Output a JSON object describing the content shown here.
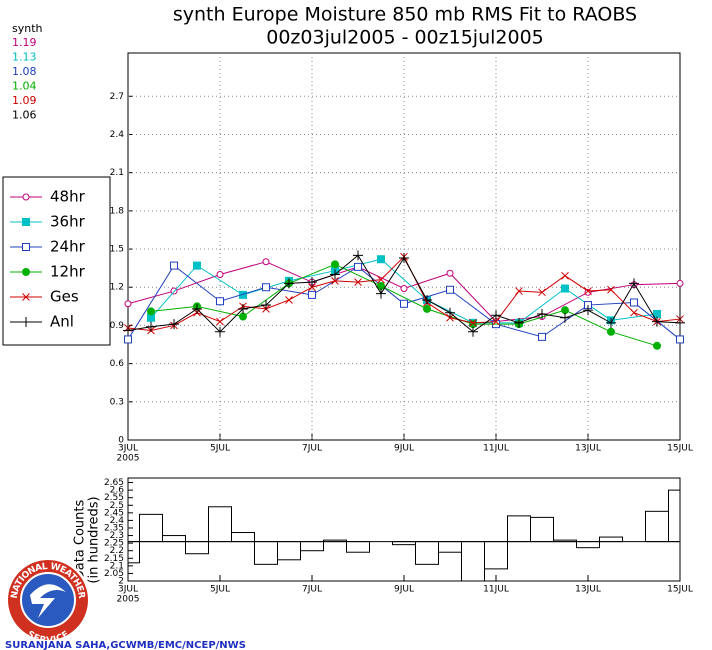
{
  "chart_data": [
    {
      "type": "line",
      "title": "synth Europe Moisture 850 mb RMS Fit to RAOBS",
      "subtitle": "00z03jul2005 - 00z15jul2005",
      "stats_label": "synth",
      "year": "2005",
      "xlim": [
        3,
        15
      ],
      "xticks": [
        {
          "value": 3,
          "label": "3JUL"
        },
        {
          "value": 5,
          "label": "5JUL"
        },
        {
          "value": 7,
          "label": "7JUL"
        },
        {
          "value": 9,
          "label": "9JUL"
        },
        {
          "value": 11,
          "label": "11JUL"
        },
        {
          "value": 13,
          "label": "13JUL"
        },
        {
          "value": 15,
          "label": "15JUL"
        }
      ],
      "ylim": [
        0,
        3.04
      ],
      "yticks": [
        0,
        0.3,
        0.6,
        0.9,
        1.2,
        1.5,
        1.8,
        2.1,
        2.4,
        2.7
      ],
      "grid": true,
      "series": [
        {
          "name": "48hr",
          "color": "#c0007a",
          "marker": "circle-open",
          "stat": 1.19,
          "x": [
            3,
            4,
            5,
            6,
            7,
            8,
            9,
            10,
            11,
            12,
            13,
            14,
            15
          ],
          "values": [
            1.07,
            1.17,
            1.3,
            1.4,
            1.24,
            1.36,
            1.19,
            1.31,
            0.93,
            0.97,
            1.16,
            1.22,
            1.23
          ]
        },
        {
          "name": "36hr",
          "color": "#00c0c8",
          "marker": "square-filled",
          "stat": 1.13,
          "x": [
            3.5,
            4.5,
            5.5,
            6.5,
            7.5,
            8.5,
            9.5,
            10.5,
            11.5,
            12.5,
            13.5,
            14.5
          ],
          "values": [
            0.96,
            1.37,
            1.14,
            1.25,
            1.33,
            1.42,
            1.1,
            0.92,
            0.92,
            1.19,
            0.94,
            0.99
          ]
        },
        {
          "name": "24hr",
          "color": "#2040c0",
          "marker": "square-open",
          "stat": 1.08,
          "x": [
            3,
            4,
            5,
            6,
            7,
            8,
            9,
            10,
            11,
            12,
            13,
            14,
            15
          ],
          "values": [
            0.79,
            1.37,
            1.09,
            1.2,
            1.14,
            1.36,
            1.07,
            1.18,
            0.91,
            0.81,
            1.06,
            1.08,
            0.79
          ]
        },
        {
          "name": "12hr",
          "color": "#00b000",
          "marker": "circle-filled",
          "stat": 1.04,
          "x": [
            3.5,
            4.5,
            5.5,
            6.5,
            7.5,
            8.5,
            9.5,
            10.5,
            11.5,
            12.5,
            13.5,
            14.5
          ],
          "values": [
            1.01,
            1.05,
            0.97,
            1.23,
            1.38,
            1.21,
            1.03,
            0.91,
            0.91,
            1.02,
            0.85,
            0.74
          ]
        },
        {
          "name": "Ges",
          "color": "#d00000",
          "marker": "x",
          "stat": 1.09,
          "x": [
            3,
            3.5,
            4,
            4.5,
            5,
            5.5,
            6,
            6.5,
            7,
            7.5,
            8,
            8.5,
            9,
            9.5,
            10,
            10.5,
            11,
            11.5,
            12,
            12.5,
            13,
            13.5,
            14,
            14.5,
            15
          ],
          "values": [
            0.88,
            0.86,
            0.9,
            1.0,
            0.93,
            1.05,
            1.03,
            1.1,
            1.2,
            1.25,
            1.24,
            1.26,
            1.44,
            1.08,
            0.96,
            0.92,
            0.93,
            1.17,
            1.16,
            1.29,
            1.17,
            1.18,
            1.0,
            0.93,
            0.95
          ]
        },
        {
          "name": "Anl",
          "color": "#000000",
          "marker": "plus",
          "stat": 1.06,
          "x": [
            3,
            3.5,
            4,
            4.5,
            5,
            5.5,
            6,
            6.5,
            7,
            7.5,
            8,
            8.5,
            9,
            9.5,
            10,
            10.5,
            11,
            11.5,
            12,
            12.5,
            13,
            13.5,
            14,
            14.5,
            15
          ],
          "values": [
            0.86,
            0.89,
            0.91,
            1.03,
            0.85,
            1.03,
            1.06,
            1.23,
            1.24,
            1.3,
            1.45,
            1.15,
            1.43,
            1.1,
            1.0,
            0.85,
            0.98,
            0.92,
            0.99,
            0.96,
            1.02,
            0.92,
            1.23,
            0.93,
            0.92
          ]
        }
      ]
    },
    {
      "type": "histogram",
      "ylabel": "Data Counts",
      "ylabel2": "(in hundreds)",
      "year": "2005",
      "xlim": [
        3,
        15
      ],
      "xticks": [
        {
          "value": 3,
          "label": "3JUL"
        },
        {
          "value": 5,
          "label": "5JUL"
        },
        {
          "value": 7,
          "label": "7JUL"
        },
        {
          "value": 9,
          "label": "9JUL"
        },
        {
          "value": 11,
          "label": "11JUL"
        },
        {
          "value": 13,
          "label": "13JUL"
        },
        {
          "value": 15,
          "label": "15JUL"
        }
      ],
      "ylim": [
        2,
        2.68
      ],
      "yticks": [
        2,
        2.05,
        2.1,
        2.15,
        2.2,
        2.25,
        2.3,
        2.35,
        2.4,
        2.45,
        2.5,
        2.55,
        2.6,
        2.65
      ],
      "mean_line": 2.26,
      "color": "#000000",
      "x": [
        3,
        3.5,
        4,
        4.5,
        5,
        5.5,
        6,
        6.5,
        7,
        7.5,
        8,
        8.5,
        9,
        9.5,
        10,
        10.5,
        11,
        11.5,
        12,
        12.5,
        13,
        13.5,
        14,
        14.5,
        15
      ],
      "values": [
        2.12,
        2.44,
        2.3,
        2.18,
        2.49,
        2.32,
        2.11,
        2.14,
        2.2,
        2.27,
        2.19,
        2.26,
        2.24,
        2.11,
        2.19,
        2.0,
        2.08,
        2.43,
        2.42,
        2.27,
        2.22,
        2.29,
        2.26,
        2.46,
        2.6
      ]
    }
  ],
  "logo": {
    "top": "NATIONAL WEATHER",
    "bottom": "SERVICE"
  },
  "credit": "SURANJANA SAHA,GCWMB/EMC/NCEP/NWS"
}
